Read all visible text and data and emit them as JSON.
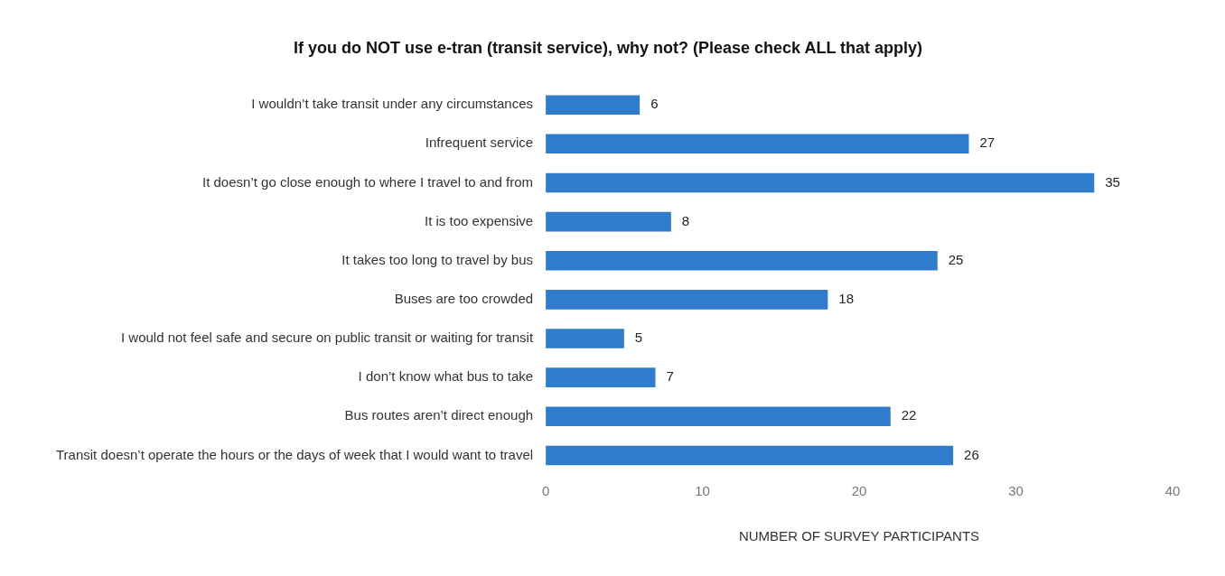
{
  "chart_data": {
    "type": "bar",
    "orientation": "horizontal",
    "title": "If you do NOT use e-tran (transit service), why not? (Please check ALL that apply)",
    "xlabel": "NUMBER OF SURVEY PARTICIPANTS",
    "categories": [
      "I wouldn’t take transit under any circumstances",
      "Infrequent service",
      "It doesn’t go close enough to where I travel to and from",
      "It is too expensive",
      "It takes too long to travel by bus",
      "Buses are too crowded",
      "I would not feel safe and secure on public transit or waiting for transit",
      "I don’t know what bus to take",
      "Bus routes aren’t direct enough",
      "Transit doesn’t operate the hours or the days of week that I would want to travel"
    ],
    "values": [
      6,
      27,
      35,
      8,
      25,
      18,
      5,
      7,
      22,
      26
    ],
    "color": "#2f7ccc",
    "xlim": [
      0,
      40
    ],
    "xticks": [
      0,
      10,
      20,
      30,
      40
    ],
    "grid": false,
    "legend": false,
    "data_labels": true
  }
}
